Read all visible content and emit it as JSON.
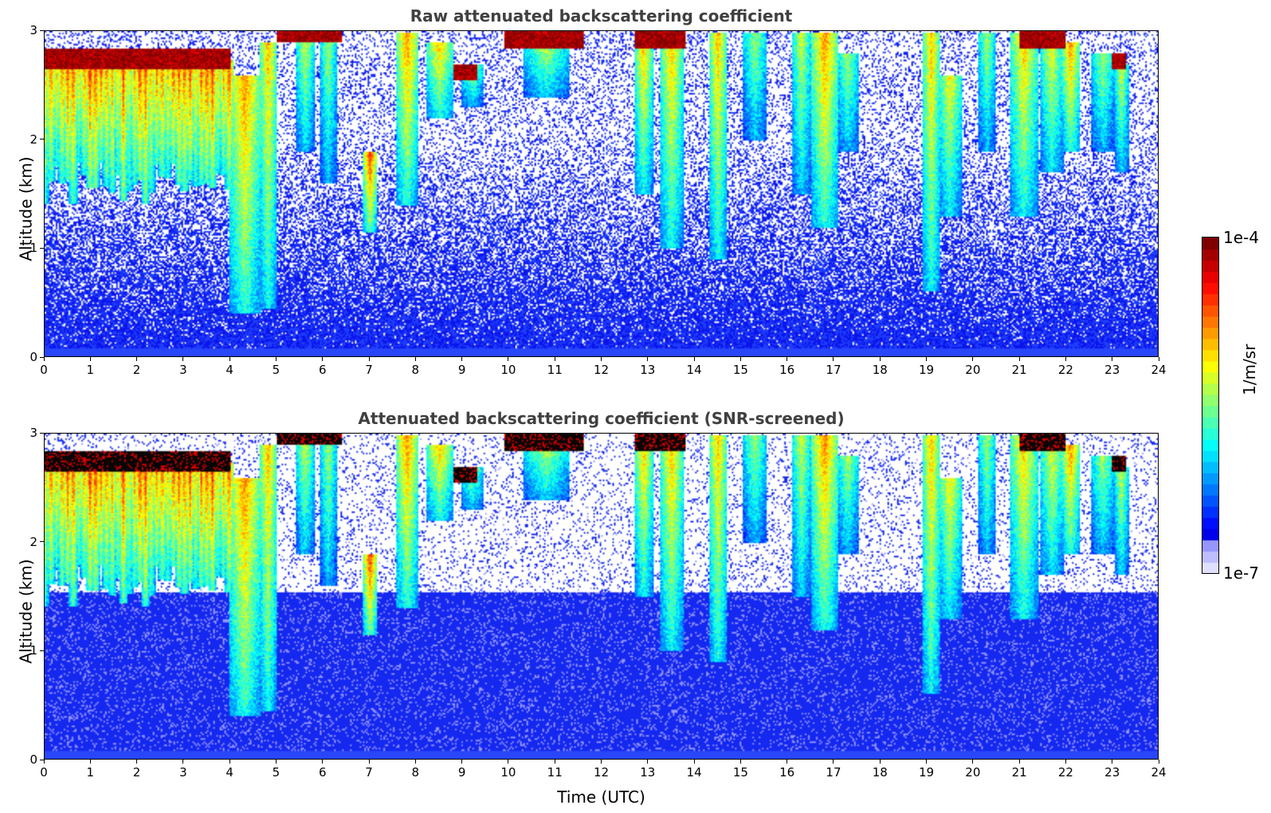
{
  "chart_data": [
    {
      "type": "heatmap",
      "title": "Raw attenuated backscattering coefficient",
      "xlabel": "",
      "ylabel": "Altitude (km)",
      "xlim": [
        0,
        24
      ],
      "ylim": [
        0,
        3
      ],
      "xticks": [
        "0",
        "1",
        "2",
        "3",
        "4",
        "5",
        "6",
        "7",
        "8",
        "9",
        "10",
        "11",
        "12",
        "13",
        "14",
        "15",
        "16",
        "17",
        "18",
        "19",
        "20",
        "21",
        "22",
        "23",
        "24"
      ],
      "yticks": [
        "0",
        "1",
        "2",
        "3"
      ],
      "colorscale": "jet",
      "scale": "log",
      "screened": false
    },
    {
      "type": "heatmap",
      "title": "Attenuated backscattering coefficient (SNR-screened)",
      "xlabel": "Time (UTC)",
      "ylabel": "Altitude (km)",
      "xlim": [
        0,
        24
      ],
      "ylim": [
        0,
        3
      ],
      "xticks": [
        "0",
        "1",
        "2",
        "3",
        "4",
        "5",
        "6",
        "7",
        "8",
        "9",
        "10",
        "11",
        "12",
        "13",
        "14",
        "15",
        "16",
        "17",
        "18",
        "19",
        "20",
        "21",
        "22",
        "23",
        "24"
      ],
      "yticks": [
        "0",
        "1",
        "2",
        "3"
      ],
      "colorscale": "jet",
      "scale": "log",
      "screened": true
    }
  ],
  "colorbar": {
    "max_label": "1e-4",
    "min_label": "1e-7",
    "units": "1/m/sr"
  }
}
